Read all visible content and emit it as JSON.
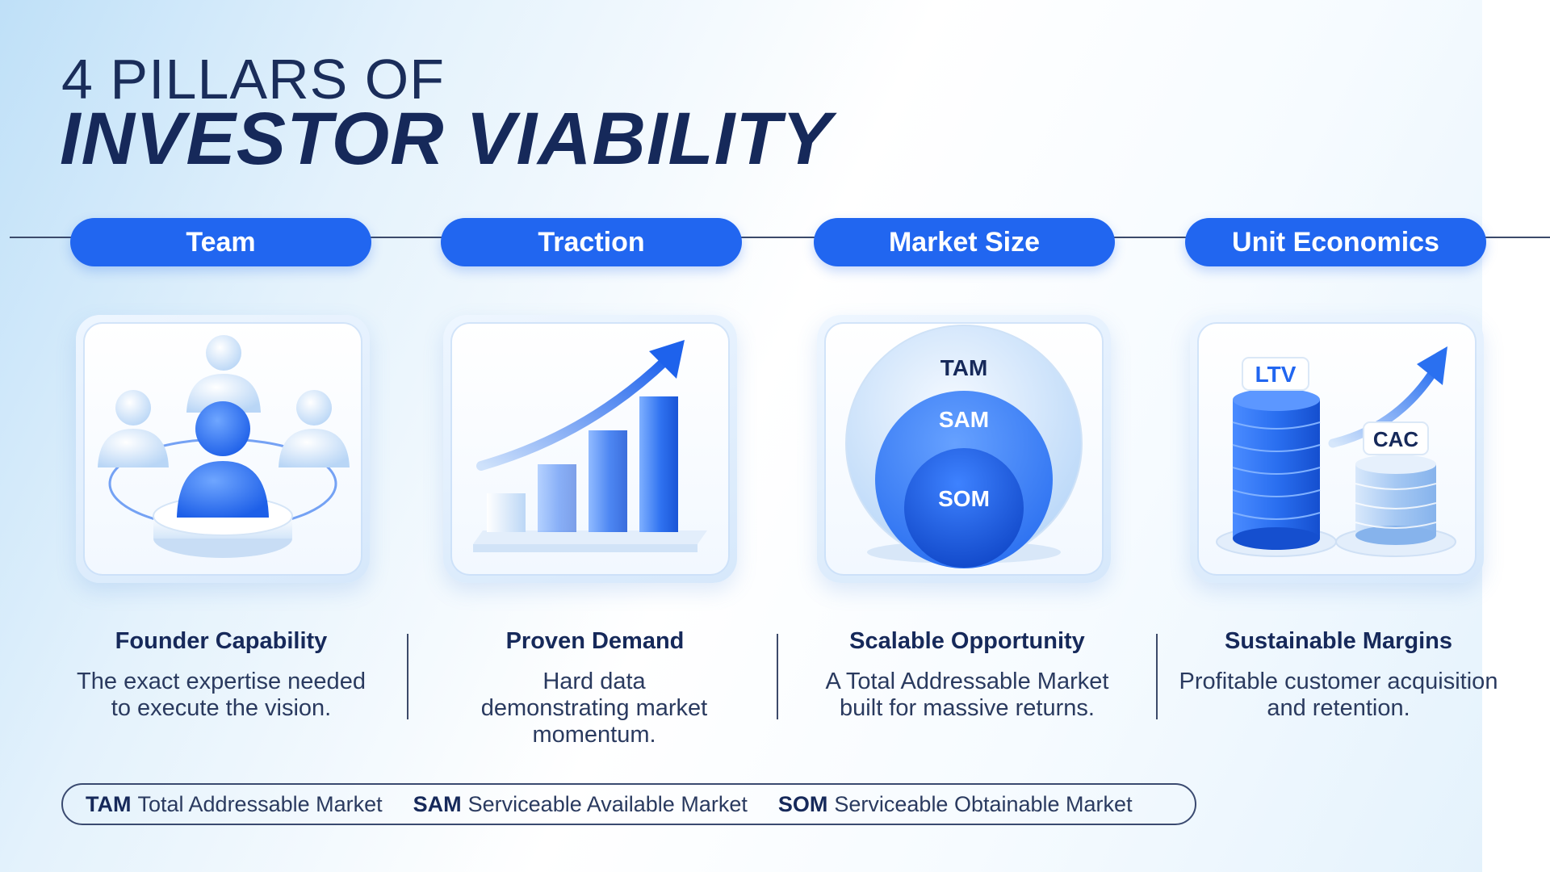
{
  "title": {
    "line1": "4 PILLARS OF",
    "line2": "INVESTOR VIABILITY"
  },
  "pillars": [
    {
      "label": "Team",
      "heading": "Founder Capability",
      "description": "The exact expertise needed to execute the vision.",
      "icon": "team-icon"
    },
    {
      "label": "Traction",
      "heading": "Proven Demand",
      "description": "Hard data demonstrating market momentum.",
      "icon": "growth-chart-icon"
    },
    {
      "label": "Market Size",
      "heading": "Scalable Opportunity",
      "description": "A Total Addressable Market built for massive returns.",
      "icon": "market-circles-icon",
      "circles": [
        "TAM",
        "SAM",
        "SOM"
      ]
    },
    {
      "label": "Unit Economics",
      "heading": "Sustainable Margins",
      "description": "Profitable customer acquisition and retention.",
      "icon": "coin-stacks-icon",
      "stacks": [
        "LTV",
        "CAC"
      ]
    }
  ],
  "legend": [
    {
      "abbr": "TAM",
      "text": "Total Addressable Market"
    },
    {
      "abbr": "SAM",
      "text": "Serviceable Available Market"
    },
    {
      "abbr": "SOM",
      "text": "Serviceable Obtainable Market"
    }
  ],
  "colors": {
    "accent": "#2166f0",
    "navy": "#16295a"
  }
}
